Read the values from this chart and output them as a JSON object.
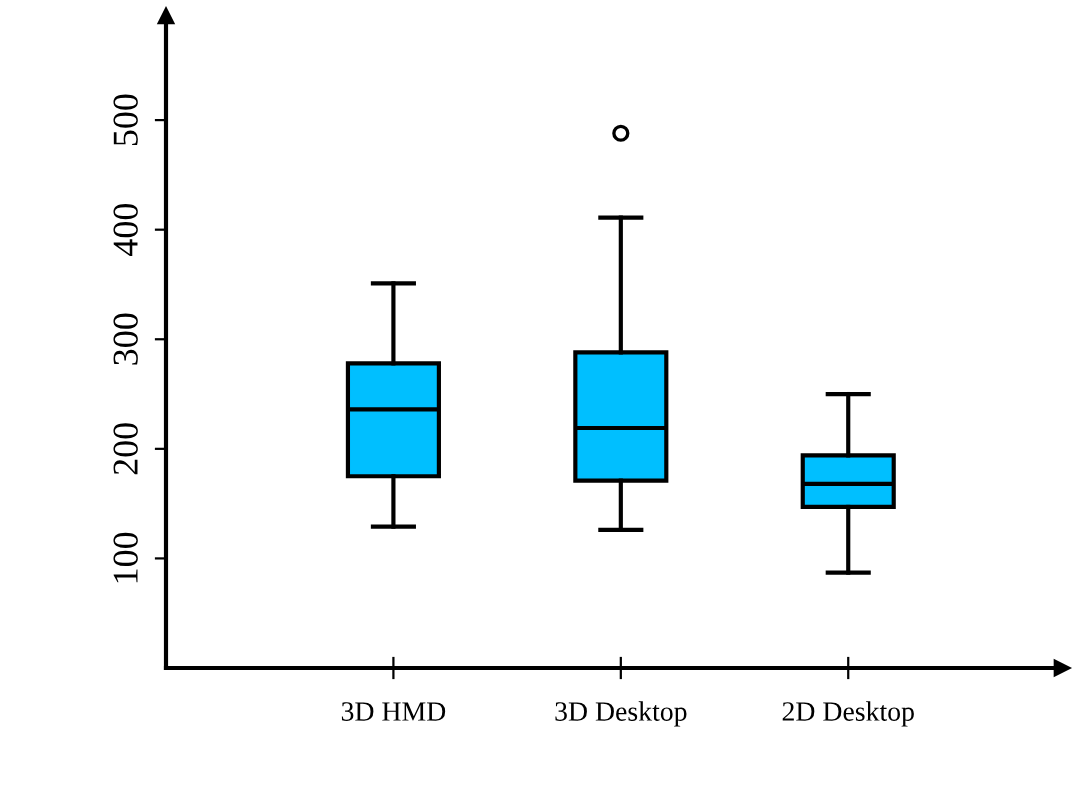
{
  "chart_data": {
    "type": "box",
    "categories": [
      "3D HMD",
      "3D Desktop",
      "2D Desktop"
    ],
    "ylim": [
      0,
      595
    ],
    "yticks": [
      100,
      200,
      300,
      400,
      500
    ],
    "grid": false,
    "series": [
      {
        "color": "#00bfff",
        "boxes": [
          {
            "low": 129,
            "q1": 175,
            "median": 236,
            "q3": 278,
            "high": 351
          },
          {
            "low": 126,
            "q1": 171,
            "median": 219,
            "q3": 288,
            "high": 411,
            "outliers": [
              488
            ]
          },
          {
            "low": 87,
            "q1": 147,
            "median": 168,
            "q3": 194,
            "high": 250
          }
        ]
      }
    ]
  }
}
